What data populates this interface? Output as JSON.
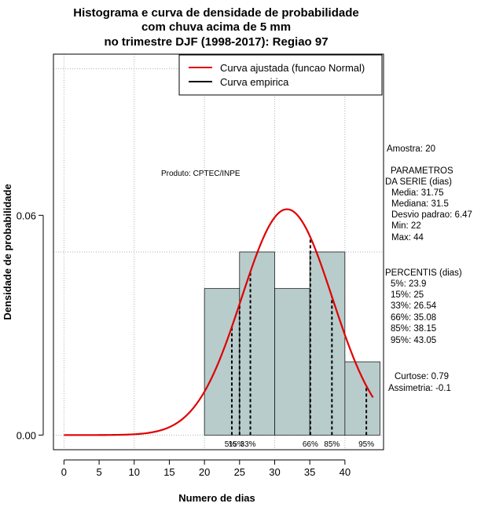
{
  "chart_data": {
    "type": "bar",
    "title_lines": [
      "Histograma e curva de densidade de probabilidade",
      "com chuva acima de 5 mm",
      "no trimestre DJF (1998-2017): Regiao 97"
    ],
    "xlabel": "Numero de dias",
    "ylabel": "Densidade de probabilidade",
    "xlim": [
      -1.5,
      45.5
    ],
    "ylim": [
      -0.004,
      0.104
    ],
    "x_ticks": [
      0,
      5,
      10,
      15,
      20,
      25,
      30,
      35,
      40
    ],
    "x_tick_labels": [
      "0",
      "5",
      "10",
      "15",
      "20",
      "25",
      "30",
      "35",
      "40"
    ],
    "y_ticks": [
      0.0,
      0.06
    ],
    "y_tick_labels": [
      "0.00",
      "0.06"
    ],
    "grid_x": [
      0,
      10,
      20,
      30,
      40
    ],
    "grid_y": [
      0.0,
      0.05,
      0.1
    ],
    "bins": [
      {
        "x0": 20,
        "x1": 25,
        "density": 0.04
      },
      {
        "x0": 25,
        "x1": 30,
        "density": 0.05
      },
      {
        "x0": 30,
        "x1": 35,
        "density": 0.04
      },
      {
        "x0": 35,
        "x1": 40,
        "density": 0.05
      },
      {
        "x0": 40,
        "x1": 45,
        "density": 0.02
      }
    ],
    "normal_curve": {
      "mean": 31.75,
      "sd": 6.47,
      "x_from": 0,
      "x_to": 44
    },
    "percentile_lines": [
      {
        "label": "5%",
        "x": 23.9
      },
      {
        "label": "15%",
        "x": 25
      },
      {
        "label": "33%",
        "x": 26.54
      },
      {
        "label": "66%",
        "x": 35.08
      },
      {
        "label": "85%",
        "x": 38.15
      },
      {
        "label": "95%",
        "x": 43.05
      }
    ],
    "legend": [
      {
        "label": "Curva ajustada (funcao Normal)",
        "color": "#e00000"
      },
      {
        "label": "Curva empirica",
        "color": "#000000"
      }
    ],
    "produto": "Produto: CPTEC/INPE",
    "colors": {
      "bar_fill": "#b8cccc",
      "curve": "#e00000",
      "grid": "#b0b0b0"
    }
  },
  "side_panel": {
    "amostra": "Amostra: 20",
    "parametros_title": "PARAMETROS",
    "parametros_subtitle": "DA SERIE (dias)",
    "parametros": [
      "Media: 31.75",
      "Mediana: 31.5",
      "Desvio padrao: 6.47",
      "Min: 22",
      "Max: 44"
    ],
    "percentis_title": "PERCENTIS (dias)",
    "percentis": [
      "5%: 23.9",
      "15%: 25",
      "33%: 26.54",
      "66%: 35.08",
      "85%: 38.15",
      "95%: 43.05"
    ],
    "curtose": "Curtose: 0.79",
    "assimetria": "Assimetria: -0.1"
  }
}
